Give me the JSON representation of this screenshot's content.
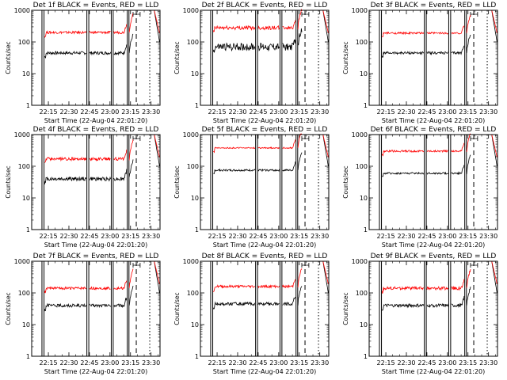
{
  "chart_data": [
    {
      "type": "line",
      "title": "Det 1f BLACK = Events, RED = LLD",
      "ylabel": "Counts/sec",
      "xlabel": "Start Time (22-Aug-04 22:01:20)",
      "y_scale": "log",
      "ylim": [
        1,
        1000
      ],
      "y_ticks": [
        "1",
        "10",
        "100",
        "1000"
      ],
      "x_ticks": [
        "22:15",
        "22:30",
        "22:45",
        "23:00",
        "23:15",
        "23:30"
      ],
      "series": [
        {
          "color": "#000000",
          "base": 45,
          "noise": 0.05
        },
        {
          "color": "#ff0000",
          "base": 200,
          "noise": 0.04
        }
      ]
    },
    {
      "type": "line",
      "title": "Det 2f BLACK = Events, RED = LLD",
      "ylabel": "Counts/sec",
      "xlabel": "Start Time (22-Aug-04 22:01:20)",
      "y_scale": "log",
      "ylim": [
        1,
        1000
      ],
      "y_ticks": [
        "1",
        "10",
        "100",
        "1000"
      ],
      "x_ticks": [
        "22:15",
        "22:30",
        "22:45",
        "23:00",
        "23:15",
        "23:30"
      ],
      "series": [
        {
          "color": "#000000",
          "base": 70,
          "noise": 0.12
        },
        {
          "color": "#ff0000",
          "base": 280,
          "noise": 0.06
        }
      ]
    },
    {
      "type": "line",
      "title": "Det 3f BLACK = Events, RED = LLD",
      "ylabel": "Counts/sec",
      "xlabel": "Start Time (22-Aug-04 22:01:20)",
      "y_scale": "log",
      "ylim": [
        1,
        1000
      ],
      "y_ticks": [
        "1",
        "10",
        "100",
        "1000"
      ],
      "x_ticks": [
        "22:15",
        "22:30",
        "22:45",
        "23:00",
        "23:15",
        "23:30"
      ],
      "series": [
        {
          "color": "#000000",
          "base": 45,
          "noise": 0.04
        },
        {
          "color": "#ff0000",
          "base": 190,
          "noise": 0.03
        }
      ]
    },
    {
      "type": "line",
      "title": "Det 4f BLACK = Events, RED = LLD",
      "ylabel": "Counts/sec",
      "xlabel": "Start Time (22-Aug-04 22:01:20)",
      "y_scale": "log",
      "ylim": [
        1,
        1000
      ],
      "y_ticks": [
        "1",
        "10",
        "100",
        "1000"
      ],
      "x_ticks": [
        "22:15",
        "22:30",
        "22:45",
        "23:00",
        "23:15",
        "23:30"
      ],
      "series": [
        {
          "color": "#000000",
          "base": 40,
          "noise": 0.06
        },
        {
          "color": "#ff0000",
          "base": 170,
          "noise": 0.05
        }
      ]
    },
    {
      "type": "line",
      "title": "Det 5f BLACK = Events, RED = LLD",
      "ylabel": "Counts/sec",
      "xlabel": "Start Time (22-Aug-04 22:01:20)",
      "y_scale": "log",
      "ylim": [
        1,
        1000
      ],
      "y_ticks": [
        "1",
        "10",
        "100",
        "1000"
      ],
      "x_ticks": [
        "22:15",
        "22:30",
        "22:45",
        "23:00",
        "23:15",
        "23:30"
      ],
      "series": [
        {
          "color": "#000000",
          "base": 75,
          "noise": 0.03
        },
        {
          "color": "#ff0000",
          "base": 380,
          "noise": 0.02
        }
      ]
    },
    {
      "type": "line",
      "title": "Det 6f BLACK = Events, RED = LLD",
      "ylabel": "Counts/sec",
      "xlabel": "Start Time (22-Aug-04 22:01:20)",
      "y_scale": "log",
      "ylim": [
        1,
        1000
      ],
      "y_ticks": [
        "1",
        "10",
        "100",
        "1000"
      ],
      "x_ticks": [
        "22:15",
        "22:30",
        "22:45",
        "23:00",
        "23:15",
        "23:30"
      ],
      "series": [
        {
          "color": "#000000",
          "base": 60,
          "noise": 0.03
        },
        {
          "color": "#ff0000",
          "base": 300,
          "noise": 0.03
        }
      ]
    },
    {
      "type": "line",
      "title": "Det 7f BLACK = Events, RED = LLD",
      "ylabel": "Counts/sec",
      "xlabel": "Start Time (22-Aug-04 22:01:20)",
      "y_scale": "log",
      "ylim": [
        1,
        1000
      ],
      "y_ticks": [
        "1",
        "10",
        "100",
        "1000"
      ],
      "x_ticks": [
        "22:15",
        "22:30",
        "22:45",
        "23:00",
        "23:15",
        "23:30"
      ],
      "series": [
        {
          "color": "#000000",
          "base": 40,
          "noise": 0.05
        },
        {
          "color": "#ff0000",
          "base": 140,
          "noise": 0.04
        }
      ]
    },
    {
      "type": "line",
      "title": "Det 8f BLACK = Events, RED = LLD",
      "ylabel": "Counts/sec",
      "xlabel": "Start Time (22-Aug-04 22:01:20)",
      "y_scale": "log",
      "ylim": [
        1,
        1000
      ],
      "y_ticks": [
        "1",
        "10",
        "100",
        "1000"
      ],
      "x_ticks": [
        "22:15",
        "22:30",
        "22:45",
        "23:00",
        "23:15",
        "23:30"
      ],
      "series": [
        {
          "color": "#000000",
          "base": 45,
          "noise": 0.05
        },
        {
          "color": "#ff0000",
          "base": 160,
          "noise": 0.04
        }
      ]
    },
    {
      "type": "line",
      "title": "Det 9f BLACK = Events, RED = LLD",
      "ylabel": "Counts/sec",
      "xlabel": "Start Time (22-Aug-04 22:01:20)",
      "y_scale": "log",
      "ylim": [
        1,
        1000
      ],
      "y_ticks": [
        "1",
        "10",
        "100",
        "1000"
      ],
      "x_ticks": [
        "22:15",
        "22:30",
        "22:45",
        "23:00",
        "23:15",
        "23:30"
      ],
      "series": [
        {
          "color": "#000000",
          "base": 40,
          "noise": 0.05
        },
        {
          "color": "#ff0000",
          "base": 140,
          "noise": 0.05
        }
      ]
    }
  ]
}
